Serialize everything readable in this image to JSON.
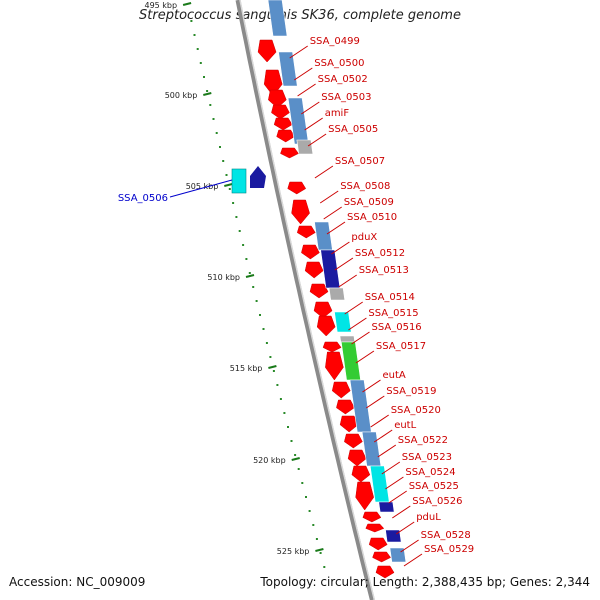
{
  "title": "Streptococcus sanguinis SK36, complete genome",
  "footer": {
    "accession": "Accession: NC_009009",
    "summary": "Topology: circular; Length: 2,388,435 bp; Genes: 2,344"
  },
  "colors": {
    "gene_label": "#cc0000",
    "highlight_label": "#0000cc",
    "backbone": "#8a8a8a",
    "tick": "#1a7a1a",
    "forward_gene": "#ff0000",
    "cds_blue": "#5a8fc8",
    "cds_darkblue": "#1a1aa0",
    "cds_cyan": "#00e5e5",
    "cds_green": "#33cc33",
    "cds_gray": "#aaaaaa"
  },
  "ticks": [
    {
      "label": "495 kbp"
    },
    {
      "label": "500 kbp"
    },
    {
      "label": "505 kbp"
    },
    {
      "label": "510 kbp"
    },
    {
      "label": "515 kbp"
    },
    {
      "label": "520 kbp"
    },
    {
      "label": "525 kbp"
    }
  ],
  "genes": [
    {
      "label": "SSA_0499",
      "highlight": false
    },
    {
      "label": "SSA_0500",
      "highlight": false
    },
    {
      "label": "SSA_0502",
      "highlight": false
    },
    {
      "label": "SSA_0503",
      "highlight": false
    },
    {
      "label": "amiF",
      "highlight": false
    },
    {
      "label": "SSA_0505",
      "highlight": false
    },
    {
      "label": "SSA_0506",
      "highlight": true
    },
    {
      "label": "SSA_0507",
      "highlight": false
    },
    {
      "label": "SSA_0508",
      "highlight": false
    },
    {
      "label": "SSA_0509",
      "highlight": false
    },
    {
      "label": "SSA_0510",
      "highlight": false
    },
    {
      "label": "pduX",
      "highlight": false
    },
    {
      "label": "SSA_0512",
      "highlight": false
    },
    {
      "label": "SSA_0513",
      "highlight": false
    },
    {
      "label": "SSA_0514",
      "highlight": false
    },
    {
      "label": "SSA_0515",
      "highlight": false
    },
    {
      "label": "SSA_0516",
      "highlight": false
    },
    {
      "label": "SSA_0517",
      "highlight": false
    },
    {
      "label": "eutA",
      "highlight": false
    },
    {
      "label": "SSA_0519",
      "highlight": false
    },
    {
      "label": "SSA_0520",
      "highlight": false
    },
    {
      "label": "eutL",
      "highlight": false
    },
    {
      "label": "SSA_0522",
      "highlight": false
    },
    {
      "label": "SSA_0523",
      "highlight": false
    },
    {
      "label": "SSA_0524",
      "highlight": false
    },
    {
      "label": "SSA_0525",
      "highlight": false
    },
    {
      "label": "SSA_0526",
      "highlight": false
    },
    {
      "label": "pduL",
      "highlight": false
    },
    {
      "label": "SSA_0528",
      "highlight": false
    },
    {
      "label": "SSA_0529",
      "highlight": false
    }
  ]
}
